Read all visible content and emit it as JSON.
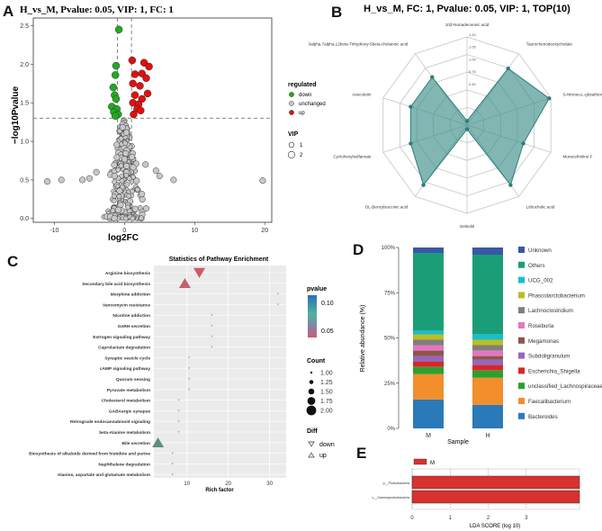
{
  "panels": {
    "a": "A",
    "b": "B",
    "c": "C",
    "d": "D",
    "e": "E"
  },
  "colors": {
    "down": "#22aa22",
    "unchanged": "#c8c8c8",
    "up": "#e01010",
    "radar_fill": "#3f8f8b",
    "radar_stroke": "#2a7f7a",
    "pvalue_high": "#2c6fb7",
    "pvalue_mid": "#4fb3a0",
    "pvalue_low": "#d45a6e",
    "lda_bar": "#d8312e"
  },
  "chart_data": [
    {
      "id": "A",
      "type": "scatter",
      "title": "H_vs_M, Pvalue: 0.05, VIP: 1, FC: 1",
      "xlabel": "log2FC",
      "ylabel": "−log10Pvalue",
      "xlim": [
        -13,
        21
      ],
      "ylim": [
        -0.05,
        2.6
      ],
      "xticks": [
        -10,
        0,
        10,
        20
      ],
      "yticks": [
        0.0,
        0.5,
        1.0,
        1.5,
        2.0,
        2.5
      ],
      "threshold_y": 1.301,
      "threshold_x": [
        -1,
        1
      ],
      "legend": {
        "regulated_title": "regulated",
        "regulated": [
          "down",
          "unchanged",
          "up"
        ],
        "vip_title": "VIP",
        "vip": [
          "1",
          "2"
        ]
      }
    },
    {
      "id": "B",
      "type": "radar",
      "title": "H_vs_M, FC: 1, Pvalue: 0.05, VIP: 1, TOP(10)",
      "axes": [
        "10Z-Nonadecenoic acid",
        "Taurochenodeoxycholate",
        "S-Nitroso-L-glutathione",
        "Muracetholine F",
        "Lithocholic acid",
        "Gelsolol",
        "DL-Benzylsuccinic acid",
        "Cyclohexylsulfamate",
        "Aesculetin",
        "3alpha,7alpha,12beta-Trihydroxy-5beta-cholanoic acid"
      ],
      "values": [
        0.05,
        0.85,
        1.05,
        0.72,
        0.9,
        0.05,
        0.9,
        0.72,
        0.72,
        0.72
      ],
      "rlim": [
        0,
        1.2
      ],
      "ring_labels": [
        "0.40",
        "0.75",
        "1.00",
        "1.05",
        "1.10"
      ]
    },
    {
      "id": "C",
      "type": "scatter",
      "title": "Statistics of Pathway Enrichment",
      "xlabel": "Rich factor",
      "xlim": [
        2,
        34
      ],
      "xticks": [
        10,
        20,
        30
      ],
      "categories": [
        "Arginine biosynthesis",
        "Secondary bile acid biosynthesis",
        "Morphine addiction",
        "Vancomycin resistance",
        "Nicotine addiction",
        "GnRH secretion",
        "Estrogen signaling pathway",
        "Caprolactam degradation",
        "Synaptic vesicle cycle",
        "cAMP signaling pathway",
        "Quorum sensing",
        "Pyruvate metabolism",
        "Cholesterol metabolism",
        "GABAergic synapse",
        "Retrograde endocannabinoid signaling",
        "beta-Alanine metabolism",
        "Bile secretion",
        "Biosynthesis of alkaloids derived from histidine and purine",
        "Naphthalene degradation",
        "Alanine, aspartate and glutamate metabolism"
      ],
      "rich_factor": [
        13,
        9.5,
        32,
        32,
        16,
        16,
        16,
        16,
        10.5,
        10.5,
        10.5,
        10.5,
        8,
        8,
        8,
        8,
        3,
        6.5,
        6.5,
        6.5
      ],
      "count": [
        2,
        2,
        1,
        1,
        1,
        1,
        1,
        1,
        1,
        1,
        1,
        1,
        1,
        1,
        1,
        1,
        2,
        1,
        1,
        1
      ],
      "diff": [
        "down",
        "up",
        "down",
        "down",
        "down",
        "down",
        "down",
        "down",
        "down",
        "down",
        "down",
        "down",
        "down",
        "down",
        "down",
        "down",
        "up",
        "down",
        "down",
        "down"
      ],
      "pvalue": [
        0.02,
        0.03,
        0.12,
        0.12,
        0.12,
        0.12,
        0.12,
        0.12,
        0.12,
        0.12,
        0.12,
        0.12,
        0.12,
        0.12,
        0.12,
        0.12,
        0.08,
        0.12,
        0.12,
        0.12
      ],
      "legend": {
        "pvalue_title": "pvalue",
        "pvalue_ticks": [
          "0.10",
          "0.05"
        ],
        "count_title": "Count",
        "count_levels": [
          "1.00",
          "1.25",
          "1.50",
          "1.75",
          "2.00"
        ],
        "diff_title": "Diff",
        "diff_levels": [
          "down",
          "up"
        ]
      }
    },
    {
      "id": "D",
      "type": "bar",
      "stacked": true,
      "categories": [
        "M",
        "H"
      ],
      "xlabel": "Sample",
      "ylabel": "Relative abundance (%)",
      "ylim": [
        0,
        100
      ],
      "yticks": [
        "0%",
        "25%",
        "50%",
        "75%",
        "100%"
      ],
      "series": [
        {
          "name": "Bacteroides",
          "color": "#2a7ab9",
          "values": [
            16,
            13
          ]
        },
        {
          "name": "Faecalibacterium",
          "color": "#f28e2b",
          "values": [
            14,
            15
          ]
        },
        {
          "name": "unclassified_Lachnospiraceae",
          "color": "#2ca02c",
          "values": [
            4,
            4
          ]
        },
        {
          "name": "Escherichia_Shigella",
          "color": "#d62728",
          "values": [
            3,
            3
          ]
        },
        {
          "name": "Subdoligranulum",
          "color": "#9467bd",
          "values": [
            3,
            3
          ]
        },
        {
          "name": "Megamonas",
          "color": "#8c564b",
          "values": [
            3,
            2
          ]
        },
        {
          "name": "Roseburia",
          "color": "#e377c2",
          "values": [
            3,
            3
          ]
        },
        {
          "name": "Lachnoclostridium",
          "color": "#7f7f7f",
          "values": [
            3,
            3
          ]
        },
        {
          "name": "Phascolarctobacterium",
          "color": "#bcbd22",
          "values": [
            3,
            3
          ]
        },
        {
          "name": "UCG_002",
          "color": "#17becf",
          "values": [
            2,
            3
          ]
        },
        {
          "name": "Others",
          "color": "#1b9e77",
          "values": [
            43,
            44
          ]
        },
        {
          "name": "Unknown",
          "color": "#3a57a7",
          "values": [
            3,
            4
          ]
        }
      ]
    },
    {
      "id": "E",
      "type": "bar",
      "orientation": "horizontal",
      "categories": [
        "p__Proteobacteria",
        "c__Gammaproteobacteria"
      ],
      "values": [
        4.4,
        4.4
      ],
      "xlabel": "LDA SCORE (log 10)",
      "xlim": [
        0,
        4.4
      ],
      "xticks": [
        "0",
        "1",
        "2",
        "3"
      ],
      "legend": [
        "M"
      ]
    }
  ]
}
